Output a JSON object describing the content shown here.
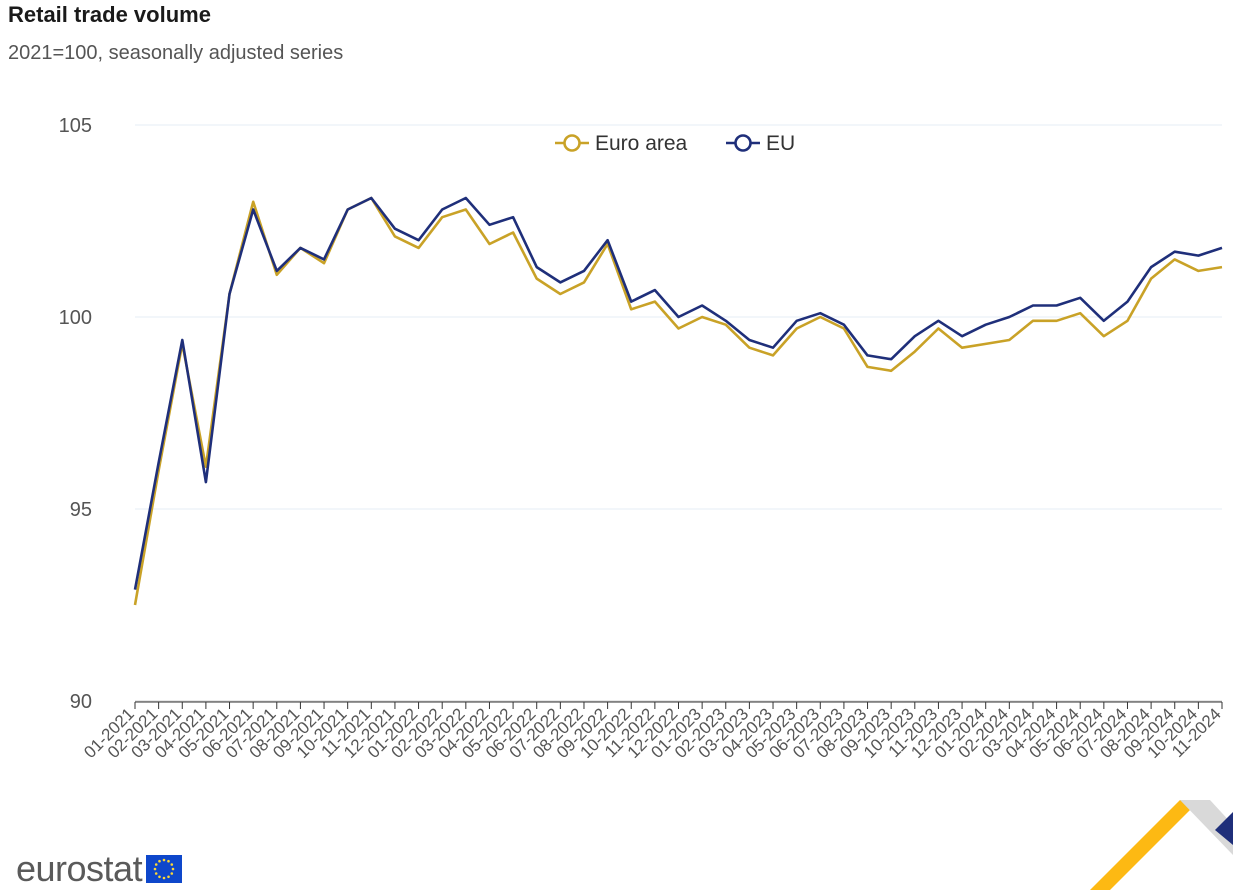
{
  "chart_data": {
    "type": "line",
    "title": "Retail trade volume",
    "subtitle": "2021=100, seasonally adjusted series",
    "categories": [
      "01-2021",
      "02-2021",
      "03-2021",
      "04-2021",
      "05-2021",
      "06-2021",
      "07-2021",
      "08-2021",
      "09-2021",
      "10-2021",
      "11-2021",
      "12-2021",
      "01-2022",
      "02-2022",
      "03-2022",
      "04-2022",
      "05-2022",
      "06-2022",
      "07-2022",
      "08-2022",
      "09-2022",
      "10-2022",
      "11-2022",
      "12-2022",
      "01-2023",
      "02-2023",
      "03-2023",
      "04-2023",
      "05-2023",
      "06-2023",
      "07-2023",
      "08-2023",
      "09-2023",
      "10-2023",
      "11-2023",
      "12-2023",
      "01-2024",
      "02-2024",
      "03-2024",
      "04-2024",
      "05-2024",
      "06-2024",
      "07-2024",
      "08-2024",
      "09-2024",
      "10-2024",
      "11-2024"
    ],
    "series": [
      {
        "name": "Euro area",
        "color": "#c9a227",
        "values": [
          92.5,
          96.0,
          99.3,
          96.1,
          100.6,
          103.0,
          101.1,
          101.8,
          101.4,
          102.8,
          103.1,
          102.1,
          101.8,
          102.6,
          102.8,
          101.9,
          102.2,
          101.0,
          100.6,
          100.9,
          101.9,
          100.2,
          100.4,
          99.7,
          100.0,
          99.8,
          99.2,
          99.0,
          99.7,
          100.0,
          99.7,
          98.7,
          98.6,
          99.1,
          99.7,
          99.2,
          99.3,
          99.4,
          99.9,
          99.9,
          100.1,
          99.5,
          99.9,
          101.0,
          101.5,
          101.2,
          101.3
        ]
      },
      {
        "name": "EU",
        "color": "#1f2f7a",
        "values": [
          92.9,
          96.2,
          99.4,
          95.7,
          100.6,
          102.8,
          101.2,
          101.8,
          101.5,
          102.8,
          103.1,
          102.3,
          102.0,
          102.8,
          103.1,
          102.4,
          102.6,
          101.3,
          100.9,
          101.2,
          102.0,
          100.4,
          100.7,
          100.0,
          100.3,
          99.9,
          99.4,
          99.2,
          99.9,
          100.1,
          99.8,
          99.0,
          98.9,
          99.5,
          99.9,
          99.5,
          99.8,
          100.0,
          100.3,
          100.3,
          100.5,
          99.9,
          100.4,
          101.3,
          101.7,
          101.6,
          101.8
        ]
      }
    ],
    "yticks": [
      90,
      95,
      100,
      105
    ],
    "ylim": [
      90,
      105
    ],
    "xlabel": "",
    "ylabel": "",
    "grid": true,
    "legend": "top-center"
  },
  "branding": {
    "logo_text": "eurostat",
    "brand_blue": "#0e47cb",
    "brand_yellow": "#fdb913"
  }
}
